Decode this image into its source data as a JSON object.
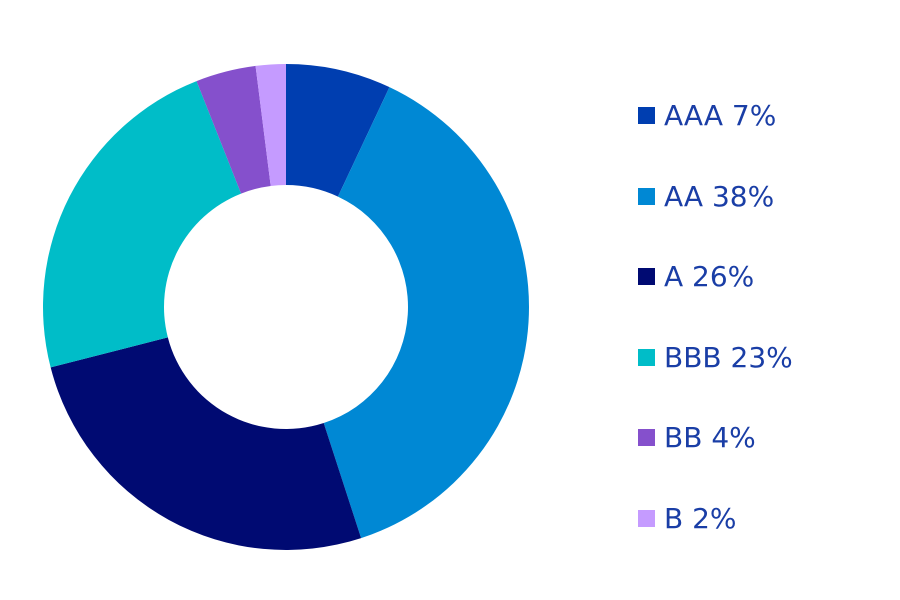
{
  "chart_data": {
    "type": "pie",
    "variant": "donut",
    "title": "",
    "legend_position": "right",
    "slices": [
      {
        "label": "AAA 7%",
        "category": "AAA",
        "value": 7,
        "color": "#003eb0"
      },
      {
        "label": "AA 38%",
        "category": "AA",
        "value": 38,
        "color": "#0088d4"
      },
      {
        "label": "A 26%",
        "category": "A",
        "value": 26,
        "color": "#000a72"
      },
      {
        "label": "BBB 23%",
        "category": "BBB",
        "value": 23,
        "color": "#00bdc8"
      },
      {
        "label": "BB 4%",
        "category": "BB",
        "value": 4,
        "color": "#8550cc"
      },
      {
        "label": "B 2%",
        "category": "B",
        "value": 2,
        "color": "#c59bff"
      }
    ]
  },
  "colors": {
    "legend_text": "#1a3ea6",
    "background": "#ffffff"
  }
}
